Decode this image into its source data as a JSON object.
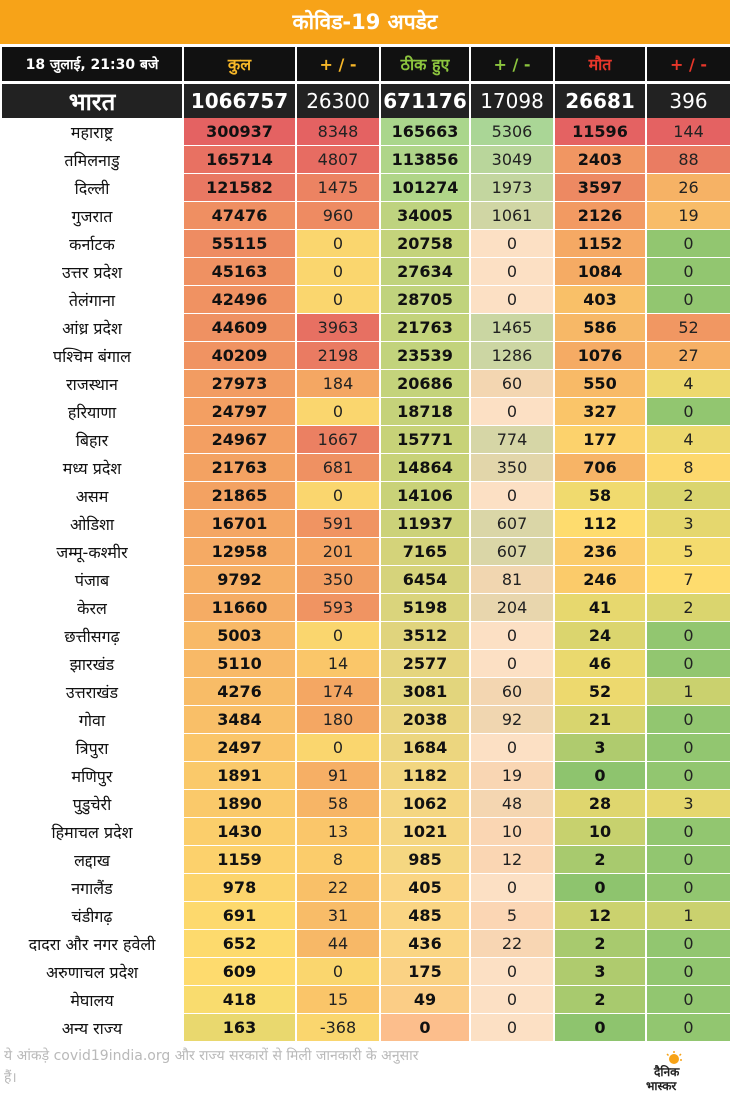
{
  "title": "कोविड-19 अपडेट",
  "header": {
    "date": "18 जुलाई, 21:30 बजे",
    "total": "कुल",
    "pm1": "+ / -",
    "recovered": "ठीक हुए",
    "pm2": "+ / -",
    "deaths": "मौत",
    "pm3": "+ / -"
  },
  "india": {
    "name": "भारत",
    "total": "1066757",
    "total_change": "26300",
    "recovered": "671176",
    "recovered_change": "17098",
    "deaths": "26681",
    "deaths_change": "396"
  },
  "rows": [
    {
      "name": "महाराष्ट्र",
      "total": "300937",
      "total_change": "8348",
      "recovered": "165663",
      "recovered_change": "5306",
      "deaths": "11596",
      "deaths_change": "144"
    },
    {
      "name": "तमिलनाडु",
      "total": "165714",
      "total_change": "4807",
      "recovered": "113856",
      "recovered_change": "3049",
      "deaths": "2403",
      "deaths_change": "88"
    },
    {
      "name": "दिल्ली",
      "total": "121582",
      "total_change": "1475",
      "recovered": "101274",
      "recovered_change": "1973",
      "deaths": "3597",
      "deaths_change": "26"
    },
    {
      "name": "गुजरात",
      "total": "47476",
      "total_change": "960",
      "recovered": "34005",
      "recovered_change": "1061",
      "deaths": "2126",
      "deaths_change": "19"
    },
    {
      "name": "कर्नाटक",
      "total": "55115",
      "total_change": "0",
      "recovered": "20758",
      "recovered_change": "0",
      "deaths": "1152",
      "deaths_change": "0"
    },
    {
      "name": "उत्तर प्रदेश",
      "total": "45163",
      "total_change": "0",
      "recovered": "27634",
      "recovered_change": "0",
      "deaths": "1084",
      "deaths_change": "0"
    },
    {
      "name": "तेलंगाना",
      "total": "42496",
      "total_change": "0",
      "recovered": "28705",
      "recovered_change": "0",
      "deaths": "403",
      "deaths_change": "0"
    },
    {
      "name": "आंध्र प्रदेश",
      "total": "44609",
      "total_change": "3963",
      "recovered": "21763",
      "recovered_change": "1465",
      "deaths": "586",
      "deaths_change": "52"
    },
    {
      "name": "पश्चिम बंगाल",
      "total": "40209",
      "total_change": "2198",
      "recovered": "23539",
      "recovered_change": "1286",
      "deaths": "1076",
      "deaths_change": "27"
    },
    {
      "name": "राजस्थान",
      "total": "27973",
      "total_change": "184",
      "recovered": "20686",
      "recovered_change": "60",
      "deaths": "550",
      "deaths_change": "4"
    },
    {
      "name": "हरियाणा",
      "total": "24797",
      "total_change": "0",
      "recovered": "18718",
      "recovered_change": "0",
      "deaths": "327",
      "deaths_change": "0"
    },
    {
      "name": "बिहार",
      "total": "24967",
      "total_change": "1667",
      "recovered": "15771",
      "recovered_change": "774",
      "deaths": "177",
      "deaths_change": "4"
    },
    {
      "name": "मध्य प्रदेश",
      "total": "21763",
      "total_change": "681",
      "recovered": "14864",
      "recovered_change": "350",
      "deaths": "706",
      "deaths_change": "8"
    },
    {
      "name": "असम",
      "total": "21865",
      "total_change": "0",
      "recovered": "14106",
      "recovered_change": "0",
      "deaths": "58",
      "deaths_change": "2"
    },
    {
      "name": "ओडिशा",
      "total": "16701",
      "total_change": "591",
      "recovered": "11937",
      "recovered_change": "607",
      "deaths": "112",
      "deaths_change": "3"
    },
    {
      "name": "जम्मू-कश्मीर",
      "total": "12958",
      "total_change": "201",
      "recovered": "7165",
      "recovered_change": "607",
      "deaths": "236",
      "deaths_change": "5"
    },
    {
      "name": "पंजाब",
      "total": "9792",
      "total_change": "350",
      "recovered": "6454",
      "recovered_change": "81",
      "deaths": "246",
      "deaths_change": "7"
    },
    {
      "name": "केरल",
      "total": "11660",
      "total_change": "593",
      "recovered": "5198",
      "recovered_change": "204",
      "deaths": "41",
      "deaths_change": "2"
    },
    {
      "name": "छत्तीसगढ़",
      "total": "5003",
      "total_change": "0",
      "recovered": "3512",
      "recovered_change": "0",
      "deaths": "24",
      "deaths_change": "0"
    },
    {
      "name": "झारखंड",
      "total": "5110",
      "total_change": "14",
      "recovered": "2577",
      "recovered_change": "0",
      "deaths": "46",
      "deaths_change": "0"
    },
    {
      "name": "उत्तराखंड",
      "total": "4276",
      "total_change": "174",
      "recovered": "3081",
      "recovered_change": "60",
      "deaths": "52",
      "deaths_change": "1"
    },
    {
      "name": "गोवा",
      "total": "3484",
      "total_change": "180",
      "recovered": "2038",
      "recovered_change": "92",
      "deaths": "21",
      "deaths_change": "0"
    },
    {
      "name": "त्रिपुरा",
      "total": "2497",
      "total_change": "0",
      "recovered": "1684",
      "recovered_change": "0",
      "deaths": "3",
      "deaths_change": "0"
    },
    {
      "name": "मणिपुर",
      "total": "1891",
      "total_change": "91",
      "recovered": "1182",
      "recovered_change": "19",
      "deaths": "0",
      "deaths_change": "0"
    },
    {
      "name": "पुडुचेरी",
      "total": "1890",
      "total_change": "58",
      "recovered": "1062",
      "recovered_change": "48",
      "deaths": "28",
      "deaths_change": "3"
    },
    {
      "name": "हिमाचल प्रदेश",
      "total": "1430",
      "total_change": "13",
      "recovered": "1021",
      "recovered_change": "10",
      "deaths": "10",
      "deaths_change": "0"
    },
    {
      "name": "लद्दाख",
      "total": "1159",
      "total_change": "8",
      "recovered": "985",
      "recovered_change": "12",
      "deaths": "2",
      "deaths_change": "0"
    },
    {
      "name": "नगालैंड",
      "total": "978",
      "total_change": "22",
      "recovered": "405",
      "recovered_change": "0",
      "deaths": "0",
      "deaths_change": "0"
    },
    {
      "name": "चंडीगढ़",
      "total": "691",
      "total_change": "31",
      "recovered": "485",
      "recovered_change": "5",
      "deaths": "12",
      "deaths_change": "1"
    },
    {
      "name": "दादरा और नगर हवेली",
      "total": "652",
      "total_change": "44",
      "recovered": "436",
      "recovered_change": "22",
      "deaths": "2",
      "deaths_change": "0"
    },
    {
      "name": "अरुणाचल प्रदेश",
      "total": "609",
      "total_change": "0",
      "recovered": "175",
      "recovered_change": "0",
      "deaths": "3",
      "deaths_change": "0"
    },
    {
      "name": "मेघालय",
      "total": "418",
      "total_change": "15",
      "recovered": "49",
      "recovered_change": "0",
      "deaths": "2",
      "deaths_change": "0"
    },
    {
      "name": "अन्य राज्य",
      "total": "163",
      "total_change": "-368",
      "recovered": "0",
      "recovered_change": "0",
      "deaths": "0",
      "deaths_change": "0"
    }
  ],
  "footer": {
    "note": "ये आंकड़े covid19india.org और राज्य सरकारों से मिली जानकारी के अनुसार हैं।",
    "logo_text_1": "दैनिक",
    "logo_text_2": "भास्कर"
  },
  "colors": {
    "title_bg": "#f7a318",
    "header_total": "#f7b728",
    "header_recovered": "#8cc43e",
    "header_deaths": "#e8362a"
  }
}
